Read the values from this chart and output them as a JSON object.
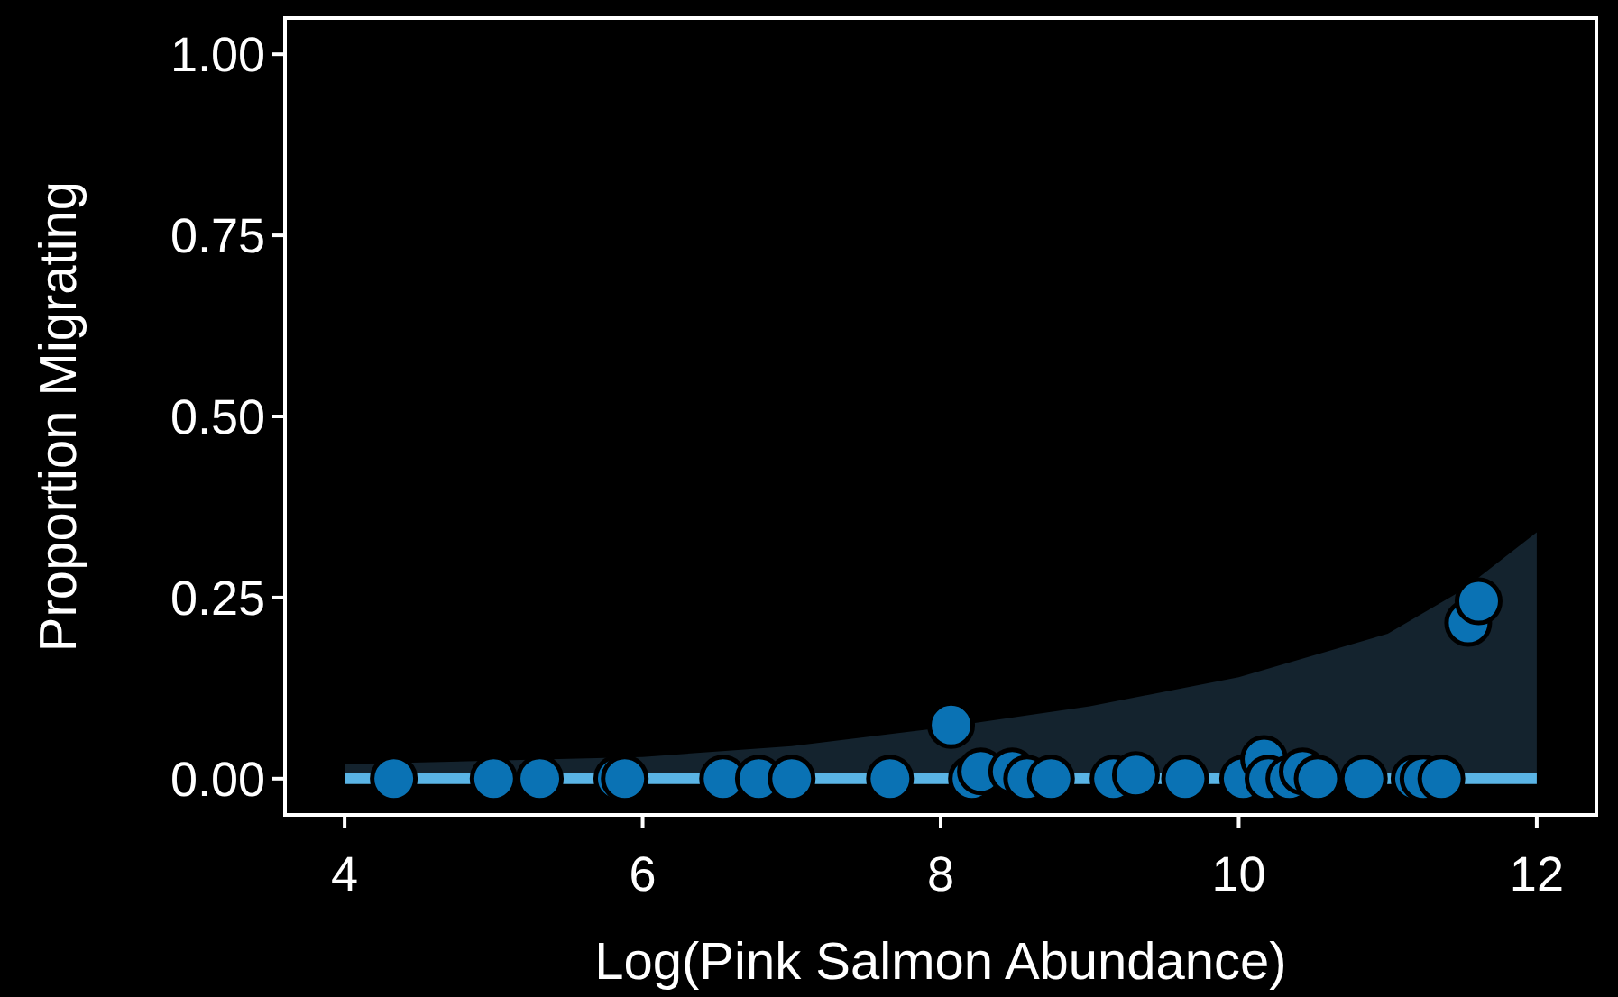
{
  "chart_data": {
    "type": "scatter",
    "xlabel": "Log(Pink Salmon Abundance)",
    "ylabel": "Proportion Migrating",
    "xlim": [
      3.6,
      12.4
    ],
    "ylim": [
      -0.05,
      1.05
    ],
    "xticks": [
      4,
      6,
      8,
      10,
      12
    ],
    "yticks": [
      {
        "value": 0,
        "label": "0.00"
      },
      {
        "value": 0.25,
        "label": "0.25"
      },
      {
        "value": 0.5,
        "label": "0.50"
      },
      {
        "value": 0.75,
        "label": "0.75"
      },
      {
        "value": 1,
        "label": "1.00"
      }
    ],
    "grid": false,
    "marker": "circle",
    "series": [
      {
        "type": "line",
        "marker": "none",
        "color": "#5ab4e5",
        "x": [
          4,
          5,
          6,
          7,
          8,
          9,
          10,
          11,
          11.5,
          12
        ],
        "values": [
          0,
          0,
          0,
          0,
          0,
          0,
          0,
          0,
          0,
          0
        ],
        "lower": [
          0,
          0,
          0,
          0,
          0,
          0,
          0,
          0,
          0,
          0
        ],
        "upper": [
          0.02,
          0.025,
          0.03,
          0.045,
          0.07,
          0.1,
          0.14,
          0.2,
          0.26,
          0.34
        ]
      },
      {
        "color": "#0a72b4",
        "x": [
          4.33,
          5.0,
          5.31,
          5.83,
          5.88,
          6.54,
          6.78,
          7.0,
          7.66,
          8.07,
          8.21,
          8.27,
          8.48,
          8.58,
          8.74,
          9.16,
          9.31,
          9.64,
          10.03,
          10.17,
          10.2,
          10.34,
          10.43,
          10.53,
          10.84,
          11.18,
          11.24,
          11.36,
          11.54,
          11.61
        ],
        "values": [
          0,
          0,
          0,
          0,
          0,
          0,
          0,
          0,
          0,
          0.074,
          0,
          0.01,
          0.01,
          0,
          0,
          0,
          0.005,
          0,
          0,
          0.027,
          0,
          0,
          0.01,
          0,
          0,
          0,
          0,
          0,
          0.215,
          0.245
        ]
      }
    ]
  }
}
